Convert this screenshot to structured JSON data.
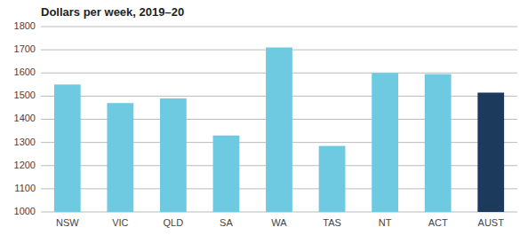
{
  "chart_data": {
    "type": "bar",
    "title": "Dollars per week, 2019–20",
    "categories": [
      "NSW",
      "VIC",
      "QLD",
      "SA",
      "WA",
      "TAS",
      "NT",
      "ACT",
      "AUST"
    ],
    "values": [
      1550,
      1470,
      1490,
      1330,
      1710,
      1285,
      1600,
      1595,
      1515
    ],
    "colors": [
      "#6ECAE0",
      "#6ECAE0",
      "#6ECAE0",
      "#6ECAE0",
      "#6ECAE0",
      "#6ECAE0",
      "#6ECAE0",
      "#6ECAE0",
      "#1B3A5C"
    ],
    "ylim": [
      1000,
      1800
    ],
    "yticks": [
      1000,
      1100,
      1200,
      1300,
      1400,
      1500,
      1600,
      1700,
      1800
    ],
    "grid": true
  }
}
